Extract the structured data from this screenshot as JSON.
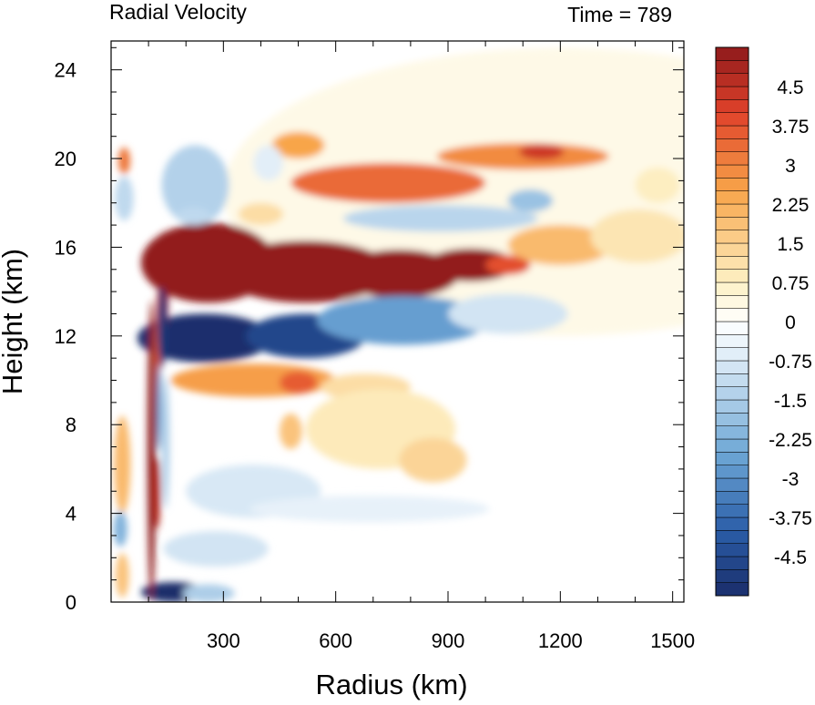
{
  "chart_data": {
    "type": "heatmap",
    "title": "Radial Velocity",
    "time_label": "Time = 789",
    "xlabel": "Radius (km)",
    "ylabel": "Height (km)",
    "xlim": [
      0,
      1530
    ],
    "ylim": [
      0,
      25.3
    ],
    "x_ticks": [
      300,
      600,
      900,
      1200,
      1500
    ],
    "x_tick_labels": [
      "300",
      "600",
      "900",
      "1200",
      "1500"
    ],
    "y_ticks": [
      0,
      4,
      8,
      12,
      16,
      20,
      24
    ],
    "y_tick_labels": [
      "0",
      "4",
      "8",
      "12",
      "16",
      "20",
      "24"
    ],
    "colorbar": {
      "levels": [
        -5.25,
        -5.0,
        -4.75,
        -4.5,
        -4.25,
        -4.0,
        -3.75,
        -3.5,
        -3.25,
        -3.0,
        -2.75,
        -2.5,
        -2.25,
        -2.0,
        -1.75,
        -1.5,
        -1.25,
        -1.0,
        -0.75,
        -0.5,
        -0.25,
        0,
        0.25,
        0.5,
        0.75,
        1.0,
        1.25,
        1.5,
        1.75,
        2.0,
        2.25,
        2.5,
        2.75,
        3.0,
        3.25,
        3.5,
        3.75,
        4.0,
        4.25,
        4.5,
        4.75,
        5.0,
        5.25
      ],
      "labels": [
        {
          "value": 4.5,
          "text": "4.5"
        },
        {
          "value": 3.75,
          "text": "3.75"
        },
        {
          "value": 3.0,
          "text": "3"
        },
        {
          "value": 2.25,
          "text": "2.25"
        },
        {
          "value": 1.5,
          "text": "1.5"
        },
        {
          "value": 0.75,
          "text": "0.75"
        },
        {
          "value": 0,
          "text": "0"
        },
        {
          "value": -0.75,
          "text": "-0.75"
        },
        {
          "value": -1.5,
          "text": "-1.5"
        },
        {
          "value": -2.25,
          "text": "-2.25"
        },
        {
          "value": -3.0,
          "text": "-3"
        },
        {
          "value": -3.75,
          "text": "-3.75"
        },
        {
          "value": -4.5,
          "text": "-4.5"
        }
      ],
      "colors": {
        "neg_max": "#1a2d6b",
        "neg_strong": "#2b5ea8",
        "neg_mid": "#6fa8d6",
        "neg_weak": "#dbeaf6",
        "zero": "#ffffff",
        "pos_weak": "#fdf0c4",
        "pos_mid": "#f8a54a",
        "pos_strong": "#e0422a",
        "pos_max": "#8f1a1c"
      }
    },
    "features": [
      {
        "x": 1200,
        "y": 18.5,
        "rx": 900,
        "ry": 6.5,
        "value": 0.3
      },
      {
        "x": 260,
        "y": 15.3,
        "rx": 180,
        "ry": 1.8,
        "value": 5.2
      },
      {
        "x": 520,
        "y": 14.9,
        "rx": 230,
        "ry": 1.4,
        "value": 5.2
      },
      {
        "x": 770,
        "y": 14.8,
        "rx": 160,
        "ry": 1.1,
        "value": 5.2
      },
      {
        "x": 960,
        "y": 15.2,
        "rx": 120,
        "ry": 0.75,
        "value": 5.2
      },
      {
        "x": 1060,
        "y": 15.2,
        "rx": 60,
        "ry": 0.45,
        "value": 3.8
      },
      {
        "x": 1200,
        "y": 16.1,
        "rx": 140,
        "ry": 0.9,
        "value": 2.0
      },
      {
        "x": 1410,
        "y": 16.5,
        "rx": 130,
        "ry": 1.2,
        "value": 1.0
      },
      {
        "x": 1460,
        "y": 18.8,
        "rx": 60,
        "ry": 0.8,
        "value": 0.8
      },
      {
        "x": 250,
        "y": 11.9,
        "rx": 180,
        "ry": 1.1,
        "value": -5.2
      },
      {
        "x": 520,
        "y": 12.0,
        "rx": 160,
        "ry": 1.0,
        "value": -4.6
      },
      {
        "x": 780,
        "y": 12.7,
        "rx": 230,
        "ry": 1.1,
        "value": -2.7
      },
      {
        "x": 1060,
        "y": 13.0,
        "rx": 160,
        "ry": 0.9,
        "value": -0.9
      },
      {
        "x": 740,
        "y": 18.9,
        "rx": 260,
        "ry": 0.9,
        "value": 3.4
      },
      {
        "x": 1100,
        "y": 20.1,
        "rx": 230,
        "ry": 0.6,
        "value": 2.9
      },
      {
        "x": 1150,
        "y": 20.3,
        "rx": 60,
        "ry": 0.35,
        "value": 4.3
      },
      {
        "x": 500,
        "y": 20.6,
        "rx": 70,
        "ry": 0.6,
        "value": 2.5
      },
      {
        "x": 880,
        "y": 17.3,
        "rx": 260,
        "ry": 0.6,
        "value": -1.3
      },
      {
        "x": 1120,
        "y": 18.1,
        "rx": 60,
        "ry": 0.5,
        "value": -1.8
      },
      {
        "x": 380,
        "y": 10.0,
        "rx": 220,
        "ry": 0.75,
        "value": 2.6
      },
      {
        "x": 500,
        "y": 9.9,
        "rx": 50,
        "ry": 0.5,
        "value": 3.6
      },
      {
        "x": 680,
        "y": 9.7,
        "rx": 120,
        "ry": 0.6,
        "value": 1.2
      },
      {
        "x": 720,
        "y": 7.8,
        "rx": 200,
        "ry": 1.8,
        "value": 0.9
      },
      {
        "x": 860,
        "y": 6.4,
        "rx": 90,
        "ry": 1.0,
        "value": 1.4
      },
      {
        "x": 480,
        "y": 7.7,
        "rx": 30,
        "ry": 0.8,
        "value": 1.8
      },
      {
        "x": 380,
        "y": 5.0,
        "rx": 180,
        "ry": 1.2,
        "value": -0.8
      },
      {
        "x": 690,
        "y": 4.2,
        "rx": 320,
        "ry": 0.6,
        "value": -0.5
      },
      {
        "x": 280,
        "y": 2.4,
        "rx": 140,
        "ry": 0.8,
        "value": -0.9
      },
      {
        "x": 165,
        "y": 0.45,
        "rx": 85,
        "ry": 0.45,
        "value": -5.4
      },
      {
        "x": 260,
        "y": 0.4,
        "rx": 70,
        "ry": 0.4,
        "value": -1.5
      },
      {
        "x": 108,
        "y": 6.8,
        "rx": 11,
        "ry": 6.8,
        "value": 5.4
      },
      {
        "x": 123,
        "y": 4.9,
        "rx": 9,
        "ry": 1.6,
        "value": 4.6
      },
      {
        "x": 125,
        "y": 10.5,
        "rx": 8,
        "ry": 3.5,
        "value": 3.6
      },
      {
        "x": 140,
        "y": 14.3,
        "rx": 14,
        "ry": 2.4,
        "value": 5.2
      },
      {
        "x": 136,
        "y": 12.4,
        "rx": 12,
        "ry": 1.8,
        "value": -5.0
      },
      {
        "x": 128,
        "y": 8.8,
        "rx": 7,
        "ry": 2.0,
        "value": -2.8
      },
      {
        "x": 146,
        "y": 7.2,
        "rx": 10,
        "ry": 3.0,
        "value": -1.5
      },
      {
        "x": 30,
        "y": 6.2,
        "rx": 22,
        "ry": 2.2,
        "value": 2.0
      },
      {
        "x": 25,
        "y": 3.3,
        "rx": 18,
        "ry": 0.8,
        "value": -2.2
      },
      {
        "x": 30,
        "y": 1.2,
        "rx": 18,
        "ry": 1.0,
        "value": 1.8
      },
      {
        "x": 35,
        "y": 19.9,
        "rx": 16,
        "ry": 0.6,
        "value": 3.2
      },
      {
        "x": 35,
        "y": 18.2,
        "rx": 25,
        "ry": 1.0,
        "value": -1.2
      },
      {
        "x": 225,
        "y": 18.8,
        "rx": 90,
        "ry": 1.8,
        "value": -1.4
      },
      {
        "x": 220,
        "y": 17.4,
        "rx": 45,
        "ry": 0.4,
        "value": -1.2
      },
      {
        "x": 400,
        "y": 17.5,
        "rx": 60,
        "ry": 0.5,
        "value": 1.2
      },
      {
        "x": 420,
        "y": 19.8,
        "rx": 40,
        "ry": 0.8,
        "value": -0.6
      }
    ]
  }
}
